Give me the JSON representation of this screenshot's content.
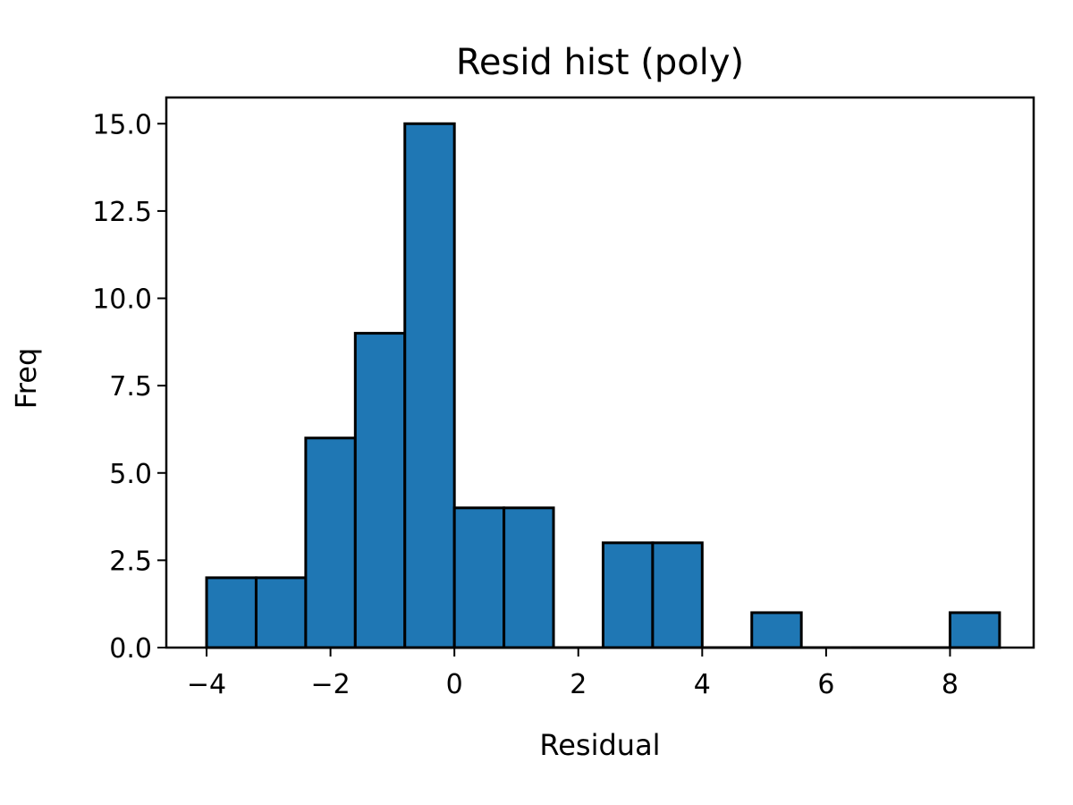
{
  "chart_data": {
    "type": "histogram",
    "title": "Resid hist (poly)",
    "xlabel": "Residual",
    "ylabel": "Freq",
    "xlim": [
      -4.65,
      9.35
    ],
    "ylim": [
      0,
      15.75
    ],
    "grid": false,
    "bar_color": "#1f77b4",
    "edge_color": "#000000",
    "bins": [
      {
        "x0": -4.0,
        "x1": -3.2,
        "count": 2
      },
      {
        "x0": -3.2,
        "x1": -2.4,
        "count": 2
      },
      {
        "x0": -2.4,
        "x1": -1.6,
        "count": 6
      },
      {
        "x0": -1.6,
        "x1": -0.8,
        "count": 9
      },
      {
        "x0": -0.8,
        "x1": 0.0,
        "count": 15
      },
      {
        "x0": 0.0,
        "x1": 0.8,
        "count": 4
      },
      {
        "x0": 0.8,
        "x1": 1.6,
        "count": 4
      },
      {
        "x0": 1.6,
        "x1": 2.4,
        "count": 0
      },
      {
        "x0": 2.4,
        "x1": 3.2,
        "count": 3
      },
      {
        "x0": 3.2,
        "x1": 4.0,
        "count": 3
      },
      {
        "x0": 4.0,
        "x1": 4.8,
        "count": 0
      },
      {
        "x0": 4.8,
        "x1": 5.6,
        "count": 1
      },
      {
        "x0": 5.6,
        "x1": 6.4,
        "count": 0
      },
      {
        "x0": 6.4,
        "x1": 7.2,
        "count": 0
      },
      {
        "x0": 7.2,
        "x1": 8.0,
        "count": 0
      },
      {
        "x0": 8.0,
        "x1": 8.8,
        "count": 1
      }
    ],
    "xticks": [
      -4,
      -2,
      0,
      2,
      4,
      6,
      8
    ],
    "xtick_labels": [
      "−4",
      "−2",
      "0",
      "2",
      "4",
      "6",
      "8"
    ],
    "yticks": [
      0,
      2.5,
      5,
      7.5,
      10,
      12.5,
      15
    ],
    "ytick_labels": [
      "0.0",
      "2.5",
      "5.0",
      "7.5",
      "10.0",
      "12.5",
      "15.0"
    ]
  }
}
